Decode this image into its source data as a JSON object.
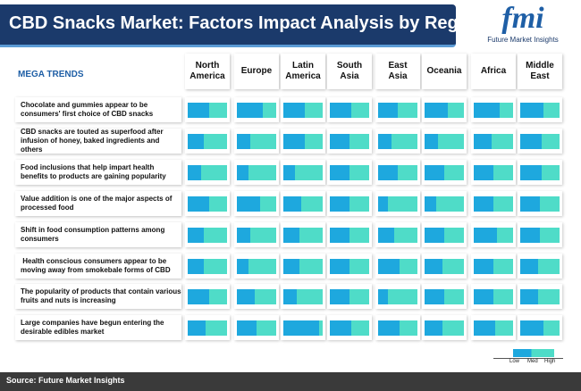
{
  "title": "CBD Snacks Market: Factors Impact Analysis by Region",
  "logo": {
    "mark": "fmi",
    "name": "Future Market Insights",
    "icon": "fmi-logo-icon"
  },
  "chart_data": {
    "type": "heatmap",
    "row_header": "MEGA TRENDS",
    "columns": [
      "North\nAmerica",
      "Europe",
      "Latin\nAmerica",
      "South\nAsia",
      "East\nAsia",
      "Oceania",
      "Africa",
      "Middle\nEast"
    ],
    "rows": [
      "Chocolate and gummies appear to be consumers' first choice of CBD snacks",
      "CBD snacks are touted as superfood after infusion of honey, baked ingredients and others",
      "Food inclusions that help impart health benefits to products are gaining popularity",
      "Value addition is one of the major aspects of processed food",
      "Shift in food consumption patterns among consumers",
      " Health conscious consumers appear to be moving away from smokebale forms of CBD",
      "The popularity of products that contain various fruits and nuts is increasing",
      "Large companies have begun entering the desirable edibles market"
    ],
    "impact_scale": [
      "Low",
      "Med",
      "High"
    ],
    "impact": [
      [
        0.55,
        0.65,
        0.55,
        0.55,
        0.5,
        0.6,
        0.65,
        0.6
      ],
      [
        0.4,
        0.35,
        0.55,
        0.5,
        0.35,
        0.35,
        0.45,
        0.55
      ],
      [
        0.35,
        0.3,
        0.3,
        0.5,
        0.5,
        0.5,
        0.5,
        0.55
      ],
      [
        0.55,
        0.6,
        0.45,
        0.5,
        0.25,
        0.3,
        0.5,
        0.5
      ],
      [
        0.4,
        0.35,
        0.4,
        0.5,
        0.4,
        0.5,
        0.6,
        0.5
      ],
      [
        0.4,
        0.3,
        0.4,
        0.5,
        0.55,
        0.45,
        0.5,
        0.45
      ],
      [
        0.55,
        0.45,
        0.35,
        0.5,
        0.25,
        0.5,
        0.5,
        0.45
      ],
      [
        0.45,
        0.5,
        0.9,
        0.55,
        0.55,
        0.45,
        0.55,
        0.6
      ]
    ],
    "colors": {
      "fill": "#1ea8de",
      "track": "#4fdcc8"
    },
    "legend_placement": "bottom-right"
  },
  "source": "Source: Future Market Insights"
}
